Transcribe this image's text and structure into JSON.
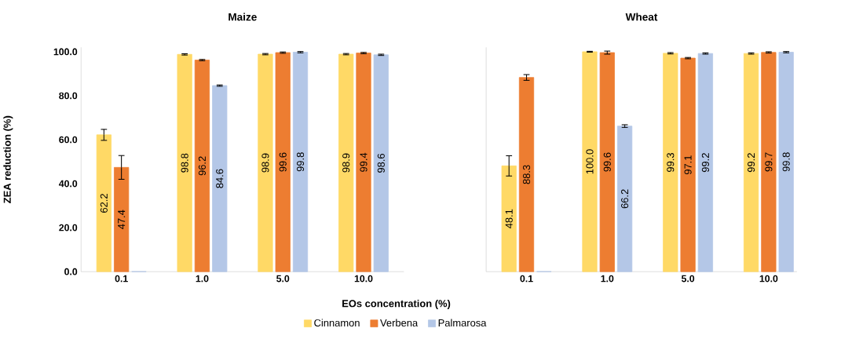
{
  "chart_data": [
    {
      "type": "bar",
      "title": "Maize",
      "xlabel": "EOs concentration (%)",
      "ylabel": "ZEA reduction (%)",
      "categories": [
        "0.1",
        "1.0",
        "5.0",
        "10.0"
      ],
      "legend": "bottom",
      "ylim": [
        0,
        102
      ],
      "yticks": [
        {
          "value": 0,
          "label": "0.0"
        },
        {
          "value": 20,
          "label": "20.0"
        },
        {
          "value": 40,
          "label": "40.0"
        },
        {
          "value": 60,
          "label": "60.0"
        },
        {
          "value": 80,
          "label": "80.0"
        },
        {
          "value": 100,
          "label": "100.0"
        }
      ],
      "series": [
        {
          "name": "Cinnamon",
          "color": "#ffd966",
          "values": [
            62.2,
            98.8,
            98.9,
            98.9
          ],
          "errors": [
            2.5,
            0.3,
            0.3,
            0.3
          ],
          "value_labels": [
            "62.2",
            "98.8",
            "98.9",
            "98.9"
          ]
        },
        {
          "name": "Verbena",
          "color": "#ed7d31",
          "values": [
            47.4,
            96.2,
            99.6,
            99.4
          ],
          "errors": [
            5.4,
            0.3,
            0.3,
            0.3
          ],
          "value_labels": [
            "47.4",
            "96.2",
            "99.6",
            "99.4"
          ]
        },
        {
          "name": "Palmarosa",
          "color": "#b4c7e7",
          "values": [
            0,
            84.6,
            99.8,
            98.6
          ],
          "errors": [
            null,
            0.3,
            0.3,
            0.3
          ],
          "value_labels": [
            null,
            "84.6",
            "99.8",
            "98.6"
          ]
        }
      ]
    },
    {
      "type": "bar",
      "title": "Wheat",
      "categories": [
        "0.1",
        "1.0",
        "5.0",
        "10.0"
      ],
      "tick_labels": "x",
      "ylim": [
        0,
        102
      ],
      "series": [
        {
          "color": "#ffd966",
          "values": [
            48.1,
            100.0,
            99.3,
            99.2
          ],
          "errors": [
            4.6,
            0.2,
            0.3,
            0.3
          ],
          "value_labels": [
            "48.1",
            "100.0",
            "99.3",
            "99.2"
          ]
        },
        {
          "color": "#ed7d31",
          "values": [
            88.3,
            99.6,
            97.1,
            99.7
          ],
          "errors": [
            1.3,
            0.7,
            0.3,
            0.3
          ],
          "value_labels": [
            "88.3",
            "99.6",
            "97.1",
            "99.7"
          ]
        },
        {
          "color": "#b4c7e7",
          "values": [
            0,
            66.2,
            99.2,
            99.8
          ],
          "errors": [
            null,
            0.6,
            0.3,
            0.3
          ],
          "value_labels": [
            null,
            "66.2",
            "99.2",
            "99.8"
          ]
        }
      ]
    }
  ]
}
